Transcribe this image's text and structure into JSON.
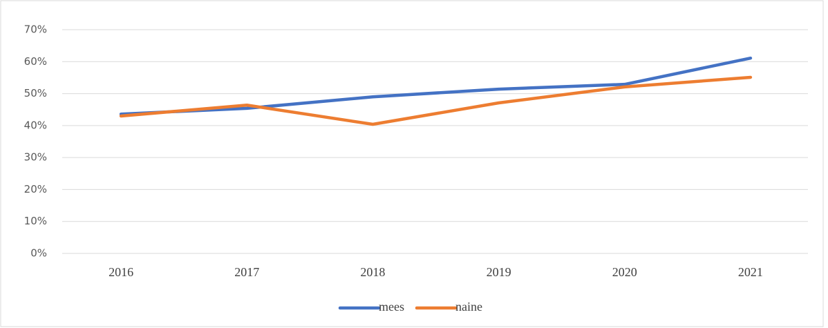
{
  "chart_data": {
    "type": "line",
    "categories": [
      "2016",
      "2017",
      "2018",
      "2019",
      "2020",
      "2021"
    ],
    "series": [
      {
        "name": "mees",
        "color": "#4472c4",
        "values": [
          43.6,
          45.4,
          49.0,
          51.4,
          52.9,
          61.1
        ]
      },
      {
        "name": "naine",
        "color": "#ed7d31",
        "values": [
          43.0,
          46.4,
          40.4,
          47.1,
          52.1,
          55.1
        ]
      }
    ],
    "ylim": [
      0,
      70
    ],
    "yticks": [
      {
        "value": 0,
        "label": "0%"
      },
      {
        "value": 10,
        "label": "10%"
      },
      {
        "value": 20,
        "label": "20%"
      },
      {
        "value": 30,
        "label": "30%"
      },
      {
        "value": 40,
        "label": "40%"
      },
      {
        "value": 50,
        "label": "50%"
      },
      {
        "value": 60,
        "label": "60%"
      },
      {
        "value": 70,
        "label": "70%"
      }
    ],
    "grid": true,
    "legend": "bottom"
  }
}
